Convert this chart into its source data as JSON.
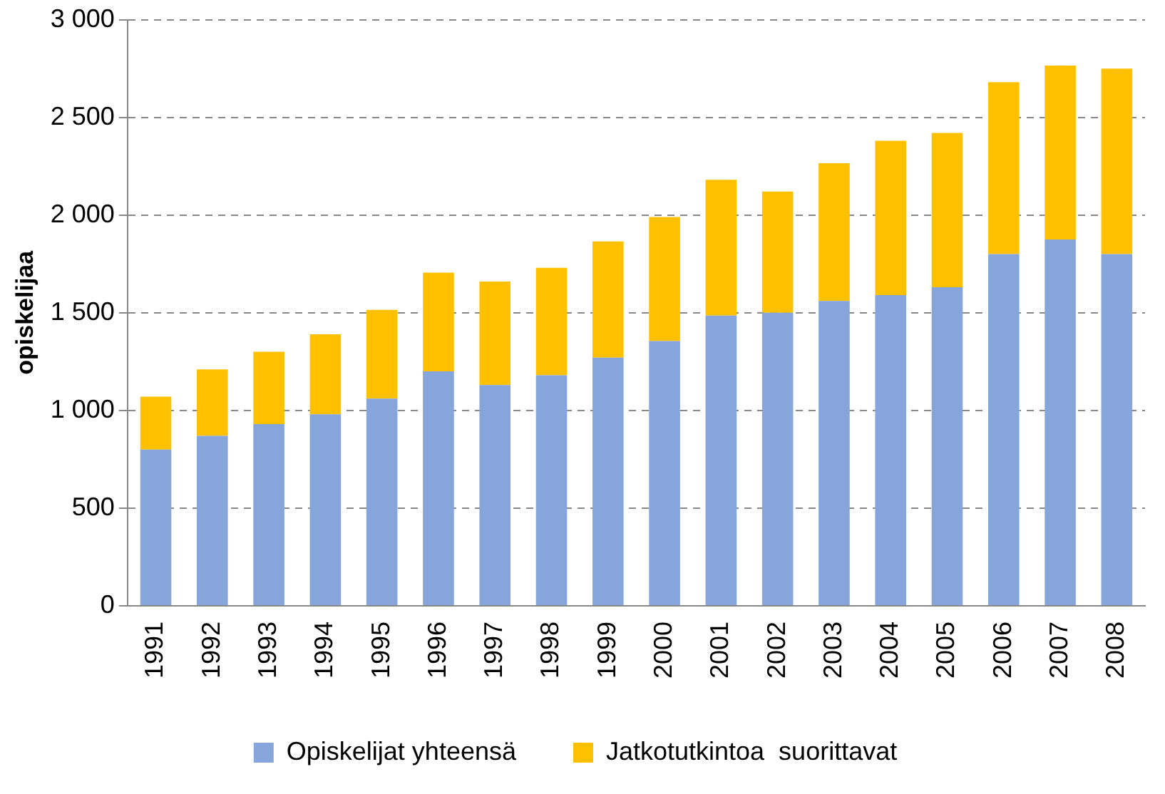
{
  "chart_data": {
    "type": "bar",
    "ylabel": "opiskelijaa",
    "stacked": true,
    "grid": "y",
    "legend": "bottom",
    "categories": [
      "1991",
      "1992",
      "1993",
      "1994",
      "1995",
      "1996",
      "1997",
      "1998",
      "1999",
      "2000",
      "2001",
      "2002",
      "2003",
      "2004",
      "2005",
      "2006",
      "2007",
      "2008"
    ],
    "ylim": [
      0,
      3000
    ],
    "yticks": [
      {
        "value": 0,
        "label": "0"
      },
      {
        "value": 500,
        "label": "500"
      },
      {
        "value": 1000,
        "label": "1 000"
      },
      {
        "value": 1500,
        "label": "1 500"
      },
      {
        "value": 2000,
        "label": "2 000"
      },
      {
        "value": 2500,
        "label": "2 500"
      },
      {
        "value": 3000,
        "label": "3 000"
      }
    ],
    "series": [
      {
        "name": "Opiskelijat yhteensä",
        "color": "#85a5db",
        "values": [
          800,
          870,
          930,
          980,
          1060,
          1200,
          1130,
          1180,
          1270,
          1355,
          1485,
          1500,
          1560,
          1590,
          1630,
          1800,
          1875,
          1800
        ]
      },
      {
        "name": "Jatkotutkintoa  suorittavat",
        "color": "#ffc000",
        "values": [
          270,
          340,
          370,
          410,
          455,
          505,
          530,
          550,
          595,
          635,
          695,
          620,
          705,
          790,
          790,
          880,
          890,
          950
        ]
      }
    ]
  }
}
